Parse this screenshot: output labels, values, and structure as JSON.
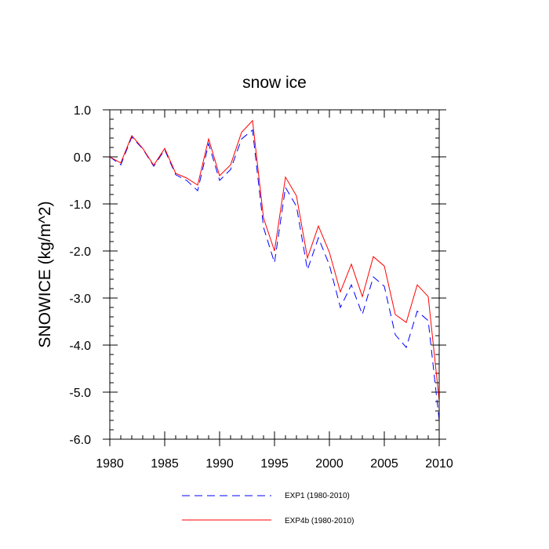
{
  "chart_data": {
    "type": "line",
    "title": "snow ice",
    "xlabel": "",
    "ylabel": "SNOWICE  (kg/m^2)",
    "xlim": [
      1980,
      2010
    ],
    "ylim": [
      -6.0,
      1.0
    ],
    "x_ticks": [
      1980,
      1985,
      1990,
      1995,
      2000,
      2005,
      2010
    ],
    "x_tick_labels": [
      "1980",
      "1985",
      "1990",
      "1995",
      "2000",
      "2005",
      "2010"
    ],
    "y_ticks": [
      1.0,
      0.0,
      -1.0,
      -2.0,
      -3.0,
      -4.0,
      -5.0,
      -6.0
    ],
    "y_tick_labels": [
      "1.0",
      "0.0",
      "-1.0",
      "-2.0",
      "-3.0",
      "-4.0",
      "-5.0",
      "-6.0"
    ],
    "legend_position": "bottom",
    "x": [
      1980,
      1981,
      1982,
      1983,
      1984,
      1985,
      1986,
      1987,
      1988,
      1989,
      1990,
      1991,
      1992,
      1993,
      1994,
      1995,
      1996,
      1997,
      1998,
      1999,
      2000,
      2001,
      2002,
      2003,
      2004,
      2005,
      2006,
      2007,
      2008,
      2009,
      2010
    ],
    "series": [
      {
        "name": "EXP1 (1980-2010)",
        "color": "#0000ff",
        "style": "dashed",
        "values": [
          0.0,
          -0.17,
          0.42,
          0.17,
          -0.2,
          0.15,
          -0.38,
          -0.5,
          -0.72,
          0.28,
          -0.5,
          -0.27,
          0.38,
          0.57,
          -1.5,
          -2.25,
          -0.65,
          -1.05,
          -2.4,
          -1.72,
          -2.3,
          -3.2,
          -2.72,
          -3.35,
          -2.55,
          -2.75,
          -3.78,
          -4.05,
          -3.28,
          -3.48,
          -5.6
        ]
      },
      {
        "name": "EXP4b (1980-2010)",
        "color": "#ff0000",
        "style": "solid",
        "values": [
          0.0,
          -0.13,
          0.45,
          0.18,
          -0.18,
          0.18,
          -0.35,
          -0.45,
          -0.6,
          0.38,
          -0.4,
          -0.17,
          0.52,
          0.77,
          -1.3,
          -2.0,
          -0.43,
          -0.83,
          -2.15,
          -1.47,
          -2.03,
          -2.87,
          -2.28,
          -2.97,
          -2.12,
          -2.32,
          -3.35,
          -3.52,
          -2.72,
          -2.97,
          -5.18
        ]
      }
    ]
  }
}
